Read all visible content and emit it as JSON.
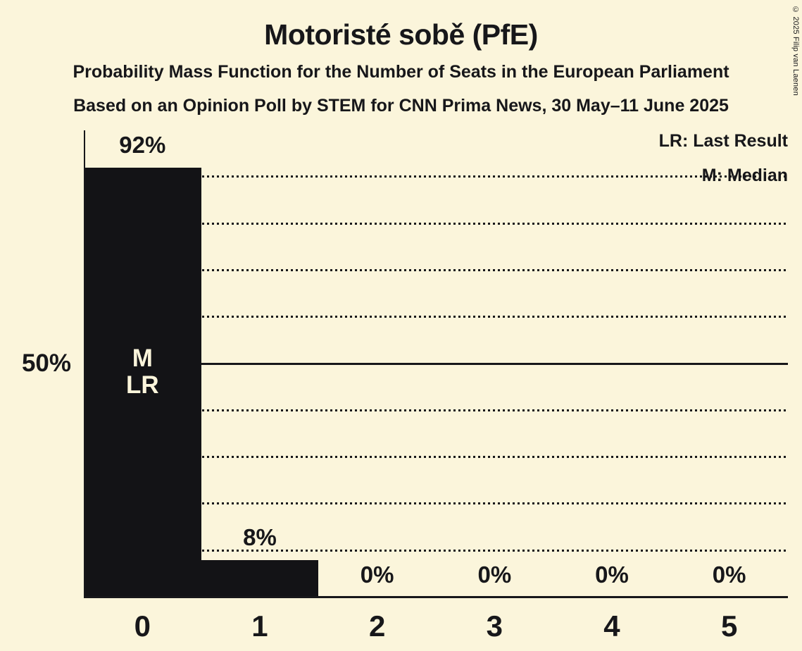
{
  "title": "Motoristé sobě (PfE)",
  "subtitle_line1": "Probability Mass Function for the Number of Seats in the European Parliament",
  "subtitle_line2": "Based on an Opinion Poll by STEM for CNN Prima News, 30 May–11 June 2025",
  "legend": {
    "last_result": "LR: Last Result",
    "median": "M: Median"
  },
  "y_axis_label": "50%",
  "copyright": "© 2025 Filip van Laenen",
  "chart_data": {
    "type": "bar",
    "title": "Motoristé sobě (PfE)",
    "categories": [
      "0",
      "1",
      "2",
      "3",
      "4",
      "5"
    ],
    "values": [
      92,
      8,
      0,
      0,
      0,
      0
    ],
    "bar_labels": [
      "92%",
      "8%",
      "0%",
      "0%",
      "0%",
      "0%"
    ],
    "ylim": [
      0,
      100
    ],
    "y_tick_labeled": [
      {
        "pct": 50,
        "label": "50%"
      }
    ],
    "gridlines": [
      {
        "pct": 10,
        "style": "dotted"
      },
      {
        "pct": 20,
        "style": "dotted"
      },
      {
        "pct": 30,
        "style": "dotted"
      },
      {
        "pct": 40,
        "style": "dotted"
      },
      {
        "pct": 50,
        "style": "solid"
      },
      {
        "pct": 60,
        "style": "dotted"
      },
      {
        "pct": 70,
        "style": "dotted"
      },
      {
        "pct": 80,
        "style": "dotted"
      },
      {
        "pct": 90,
        "style": "dotted"
      }
    ],
    "annotations": {
      "category": "0",
      "lines": [
        "M",
        "LR"
      ],
      "meaning": {
        "M": "Median",
        "LR": "Last Result"
      }
    },
    "legend_position": "top-right",
    "grid": true,
    "colors": {
      "background": "#FBF5DB",
      "bar": "#131316",
      "ink": "#17171A"
    }
  }
}
